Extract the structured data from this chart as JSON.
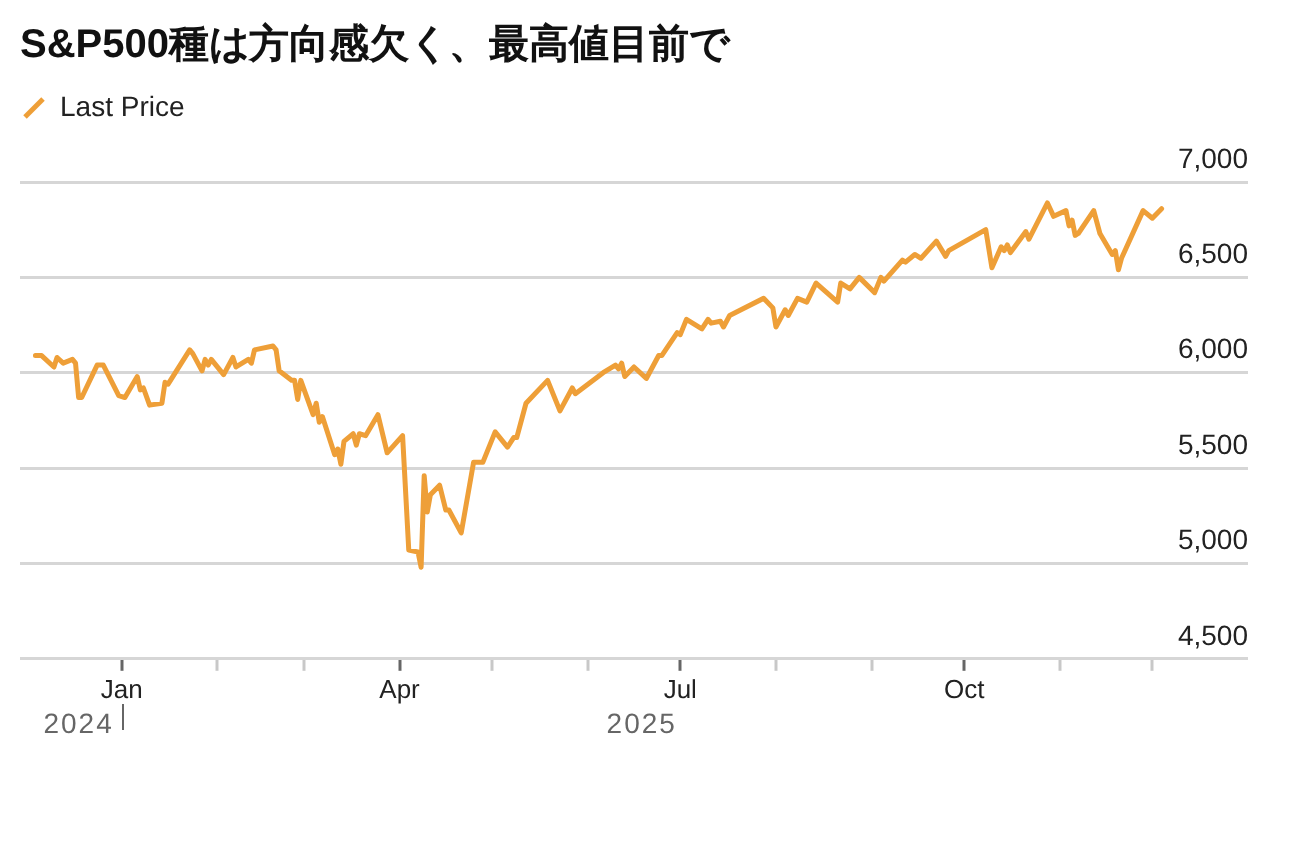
{
  "chart_data": {
    "type": "line",
    "title": "S&P500種は方向感欠く、最高値目前で",
    "x": [
      "2024-12-04",
      "2024-12-06",
      "2024-12-10",
      "2024-12-11",
      "2024-12-13",
      "2024-12-16",
      "2024-12-17",
      "2024-12-18",
      "2024-12-19",
      "2024-12-24",
      "2024-12-26",
      "2024-12-31",
      "2025-01-02",
      "2025-01-06",
      "2025-01-07",
      "2025-01-08",
      "2025-01-10",
      "2025-01-14",
      "2025-01-15",
      "2025-01-16",
      "2025-01-23",
      "2025-01-24",
      "2025-01-27",
      "2025-01-28",
      "2025-01-29",
      "2025-01-30",
      "2025-02-03",
      "2025-02-06",
      "2025-02-07",
      "2025-02-11",
      "2025-02-12",
      "2025-02-13",
      "2025-02-19",
      "2025-02-20",
      "2025-02-21",
      "2025-02-25",
      "2025-02-26",
      "2025-02-27",
      "2025-02-28",
      "2025-03-04",
      "2025-03-05",
      "2025-03-06",
      "2025-03-07",
      "2025-03-11",
      "2025-03-12",
      "2025-03-13",
      "2025-03-14",
      "2025-03-17",
      "2025-03-18",
      "2025-03-19",
      "2025-03-21",
      "2025-03-25",
      "2025-03-28",
      "2025-04-02",
      "2025-04-04",
      "2025-04-07",
      "2025-04-08",
      "2025-04-09",
      "2025-04-10",
      "2025-04-11",
      "2025-04-14",
      "2025-04-16",
      "2025-04-17",
      "2025-04-21",
      "2025-04-25",
      "2025-04-28",
      "2025-05-02",
      "2025-05-06",
      "2025-05-08",
      "2025-05-09",
      "2025-05-12",
      "2025-05-19",
      "2025-05-23",
      "2025-05-27",
      "2025-05-28",
      "2025-06-06",
      "2025-06-10",
      "2025-06-11",
      "2025-06-12",
      "2025-06-13",
      "2025-06-16",
      "2025-06-20",
      "2025-06-24",
      "2025-06-25",
      "2025-06-30",
      "2025-07-01",
      "2025-07-03",
      "2025-07-08",
      "2025-07-10",
      "2025-07-11",
      "2025-07-14",
      "2025-07-15",
      "2025-07-17",
      "2025-07-28",
      "2025-07-31",
      "2025-08-01",
      "2025-08-04",
      "2025-08-05",
      "2025-08-08",
      "2025-08-11",
      "2025-08-14",
      "2025-08-21",
      "2025-08-22",
      "2025-08-25",
      "2025-08-28",
      "2025-09-02",
      "2025-09-04",
      "2025-09-05",
      "2025-09-11",
      "2025-09-12",
      "2025-09-15",
      "2025-09-17",
      "2025-09-22",
      "2025-09-25",
      "2025-09-26",
      "2025-10-08",
      "2025-10-10",
      "2025-10-13",
      "2025-10-14",
      "2025-10-15",
      "2025-10-16",
      "2025-10-21",
      "2025-10-22",
      "2025-10-28",
      "2025-10-30",
      "2025-11-03",
      "2025-11-04",
      "2025-11-05",
      "2025-11-06",
      "2025-11-07",
      "2025-11-12",
      "2025-11-14",
      "2025-11-18",
      "2025-11-19",
      "2025-11-20",
      "2025-11-21",
      "2025-11-28",
      "2025-12-01",
      "2025-12-04"
    ],
    "series": [
      {
        "name": "Last Price",
        "color": "#ee9f38",
        "values": [
          6090,
          6090,
          6030,
          6080,
          6050,
          6070,
          6050,
          5870,
          5870,
          6040,
          6040,
          5880,
          5870,
          5980,
          5910,
          5920,
          5830,
          5840,
          5950,
          5940,
          6120,
          6100,
          6010,
          6070,
          6040,
          6070,
          5990,
          6080,
          6030,
          6070,
          6050,
          6120,
          6140,
          6120,
          6010,
          5960,
          5960,
          5860,
          5960,
          5780,
          5840,
          5740,
          5770,
          5570,
          5600,
          5520,
          5640,
          5680,
          5620,
          5680,
          5670,
          5780,
          5580,
          5670,
          5070,
          5060,
          4980,
          5460,
          5270,
          5360,
          5410,
          5280,
          5280,
          5160,
          5530,
          5530,
          5690,
          5610,
          5660,
          5660,
          5840,
          5960,
          5800,
          5920,
          5890,
          6000,
          6040,
          6020,
          6050,
          5980,
          6030,
          5970,
          6090,
          6090,
          6210,
          6200,
          6280,
          6230,
          6280,
          6260,
          6270,
          6240,
          6300,
          6390,
          6340,
          6240,
          6330,
          6300,
          6390,
          6370,
          6470,
          6370,
          6470,
          6440,
          6500,
          6420,
          6500,
          6480,
          6590,
          6580,
          6620,
          6600,
          6690,
          6610,
          6640,
          6750,
          6550,
          6660,
          6640,
          6670,
          6630,
          6740,
          6700,
          6890,
          6820,
          6850,
          6770,
          6800,
          6720,
          6730,
          6850,
          6730,
          6620,
          6640,
          6540,
          6600,
          6850,
          6810,
          6860
        ]
      }
    ],
    "xlim": [
      "2024-11-29",
      "2026-01-01"
    ],
    "xticks": [
      {
        "value": "2025-01-01",
        "label": "Jan"
      },
      {
        "value": "2025-02-01",
        "label": null
      },
      {
        "value": "2025-03-01",
        "label": null
      },
      {
        "value": "2025-04-01",
        "label": "Apr"
      },
      {
        "value": "2025-05-01",
        "label": null
      },
      {
        "value": "2025-06-01",
        "label": null
      },
      {
        "value": "2025-07-01",
        "label": "Jul"
      },
      {
        "value": "2025-08-01",
        "label": null
      },
      {
        "value": "2025-09-01",
        "label": null
      },
      {
        "value": "2025-10-01",
        "label": "Oct"
      },
      {
        "value": "2025-11-01",
        "label": null
      },
      {
        "value": "2025-12-01",
        "label": null
      }
    ],
    "ylim": [
      4500,
      7000
    ],
    "yticks": [
      {
        "value": 4500,
        "label": "4,500"
      },
      {
        "value": 5000,
        "label": "5,000"
      },
      {
        "value": 5500,
        "label": "5,500"
      },
      {
        "value": 6000,
        "label": "6,000"
      },
      {
        "value": 6500,
        "label": "6,500"
      },
      {
        "value": 7000,
        "label": "7,000"
      }
    ],
    "grid": "y",
    "legend": "top left",
    "annotations": [
      "2024",
      "2025"
    ]
  }
}
